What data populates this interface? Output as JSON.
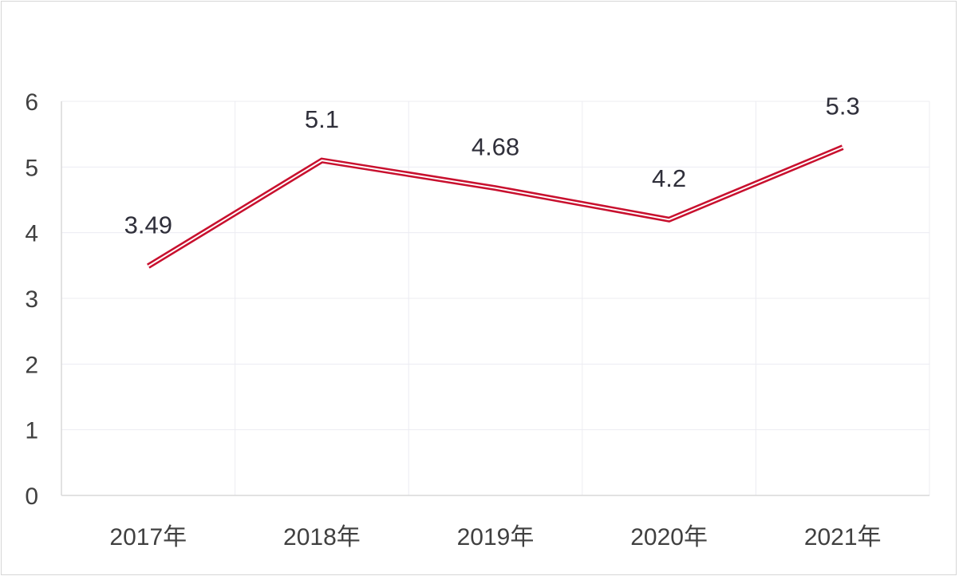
{
  "chart_data": {
    "type": "line",
    "categories": [
      "2017年",
      "2018年",
      "2019年",
      "2020年",
      "2021年"
    ],
    "series": [
      {
        "values": [
          3.49,
          5.1,
          4.68,
          4.2,
          5.3
        ]
      }
    ],
    "data_labels": [
      "3.49",
      "5.1",
      "4.68",
      "4.2",
      "5.3"
    ],
    "y_ticks": [
      "0",
      "1",
      "2",
      "3",
      "4",
      "5",
      "6"
    ],
    "ylim": [
      0,
      6
    ],
    "grid": true,
    "legend": "none",
    "line_color": "#c8102e",
    "title": "",
    "xlabel": "",
    "ylabel": ""
  }
}
